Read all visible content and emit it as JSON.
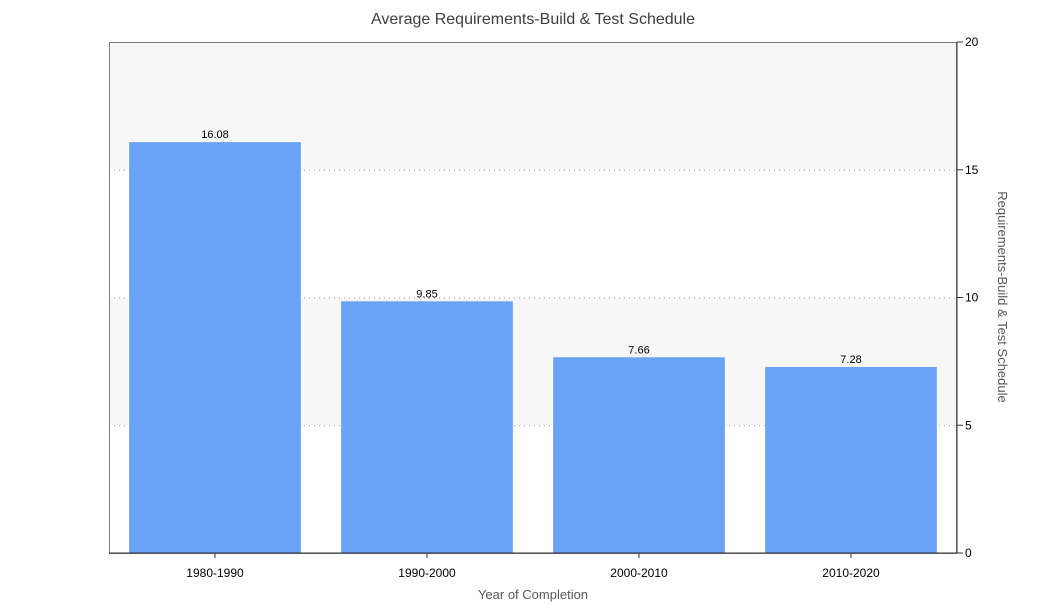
{
  "chart_data": {
    "type": "bar",
    "title": "Average Requirements-Build & Test Schedule",
    "xlabel": "Year of Completion",
    "ylabel": "Requirements-Build & Test Schedule",
    "categories": [
      "1980-1990",
      "1990-2000",
      "2000-2010",
      "2010-2020"
    ],
    "values": [
      16.08,
      9.85,
      7.66,
      7.28
    ],
    "data_labels": [
      "16.08",
      "9.85",
      "7.66",
      "7.28"
    ],
    "ylim": [
      0,
      20
    ],
    "yticks": [
      0,
      5,
      10,
      15,
      20
    ],
    "ytick_labels": [
      "0",
      "5",
      "10",
      "15",
      "20"
    ],
    "y_axis_side": "right",
    "grid": "horizontal dotted",
    "legend": "none",
    "bar_color": "#6aa2f4",
    "band_color": "#f7f7f7"
  }
}
